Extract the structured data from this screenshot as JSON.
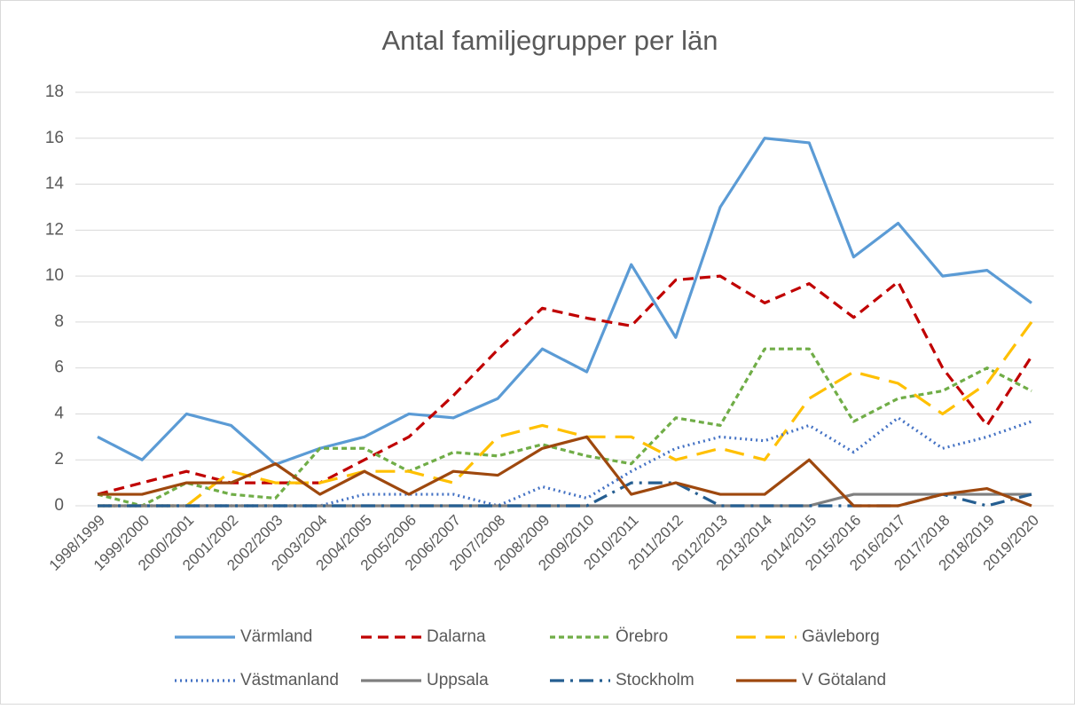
{
  "chart_data": {
    "type": "line",
    "title": "Antal familjegrupper per län",
    "categories": [
      "1998/1999",
      "1999/2000",
      "2000/2001",
      "2001/2002",
      "2002/2003",
      "2003/2004",
      "2004/2005",
      "2005/2006",
      "2006/2007",
      "2007/2008",
      "2008/2009",
      "2009/2010",
      "2010/2011",
      "2011/2012",
      "2012/2013",
      "2013/2014",
      "2014/2015",
      "2015/2016",
      "2016/2017",
      "2017/2018",
      "2018/2019",
      "2019/2020"
    ],
    "ylim": [
      0,
      18
    ],
    "yticks": [
      0,
      2,
      4,
      6,
      8,
      10,
      12,
      14,
      16,
      18
    ],
    "grid": true,
    "series": [
      {
        "name": "Värmland",
        "color": "#5b9bd5",
        "dash": "solid",
        "values": [
          3,
          2,
          4,
          3.5,
          1.8,
          2.5,
          3,
          4,
          3.83,
          4.67,
          6.83,
          5.83,
          10.5,
          7.33,
          13,
          16,
          15.8,
          10.83,
          12.3,
          10,
          10.25,
          8.83
        ]
      },
      {
        "name": "Dalarna",
        "color": "#c00000",
        "dash": "dashed",
        "values": [
          0.5,
          1,
          1.5,
          1,
          1,
          1,
          2,
          3,
          4.8,
          6.8,
          8.6,
          8.17,
          7.83,
          9.83,
          10,
          8.83,
          9.67,
          8.2,
          9.75,
          6,
          3.5,
          6.5
        ]
      },
      {
        "name": "Örebro",
        "color": "#70ad47",
        "dash": "short-dash",
        "values": [
          0.5,
          0,
          1,
          0.5,
          0.33,
          2.5,
          2.5,
          1.5,
          2.33,
          2.17,
          2.67,
          2.17,
          1.83,
          3.83,
          3.5,
          6.83,
          6.83,
          3.67,
          4.67,
          5,
          6,
          5
        ]
      },
      {
        "name": "Gävleborg",
        "color": "#ffc000",
        "dash": "long-dash",
        "values": [
          0,
          0,
          0,
          1.5,
          1,
          1,
          1.5,
          1.5,
          1,
          3,
          3.5,
          3,
          3,
          2,
          2.5,
          2,
          4.67,
          5.83,
          5.33,
          4,
          5.33,
          8
        ]
      },
      {
        "name": "Västmanland",
        "color": "#4472c4",
        "dash": "dotted",
        "values": [
          0,
          0,
          0,
          0,
          0,
          0,
          0.5,
          0.5,
          0.5,
          0,
          0.83,
          0.33,
          1.5,
          2.5,
          3,
          2.83,
          3.5,
          2.33,
          3.83,
          2.5,
          3,
          3.67
        ]
      },
      {
        "name": "Uppsala",
        "color": "#7f7f7f",
        "dash": "solid",
        "values": [
          0,
          0,
          0,
          0,
          0,
          0,
          0,
          0,
          0,
          0,
          0,
          0,
          0,
          0,
          0,
          0,
          0,
          0.5,
          0.5,
          0.5,
          0.5,
          0.5
        ]
      },
      {
        "name": "Stockholm",
        "color": "#255e91",
        "dash": "dash-dot",
        "values": [
          0,
          0,
          0,
          0,
          0,
          0,
          0,
          0,
          0,
          0,
          0,
          0,
          1,
          1,
          0,
          0,
          0,
          0,
          0,
          0.5,
          0,
          0.5
        ]
      },
      {
        "name": "V Götaland",
        "color": "#9e480e",
        "dash": "solid",
        "values": [
          0.5,
          0.5,
          1,
          1,
          1.83,
          0.5,
          1.5,
          0.5,
          1.5,
          1.33,
          2.5,
          3,
          0.5,
          1,
          0.5,
          0.5,
          2,
          0,
          0,
          0.5,
          0.75,
          0
        ]
      }
    ]
  }
}
